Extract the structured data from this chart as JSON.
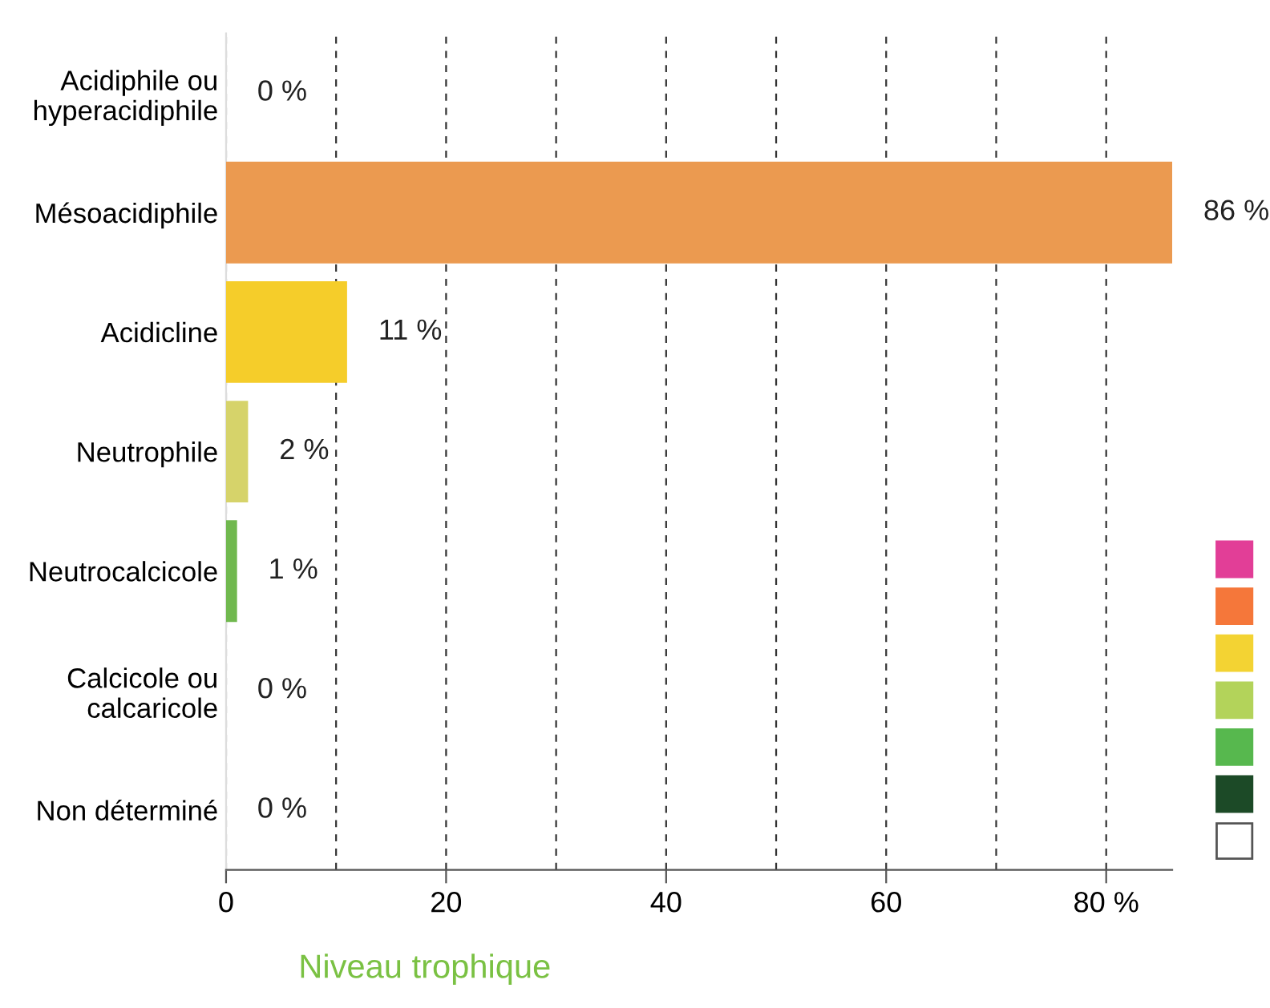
{
  "chart_data": {
    "type": "bar",
    "orientation": "horizontal",
    "xlabel": "Niveau trophique",
    "categories": [
      "Acidiphile ou\nhyperacidiphile",
      "Mésoacidiphile",
      "Acidicline",
      "Neutrophile",
      "Neutrocalcicole",
      "Calcicole ou\ncalcaricole",
      "Non déterminé"
    ],
    "values": [
      0,
      86,
      11,
      2,
      1,
      0,
      0
    ],
    "colors": [
      "#e23e97",
      "#eb9a50",
      "#f5cd2a",
      "#d6d36a",
      "#70b84e",
      "#1c4a27",
      "#ffffff"
    ],
    "value_labels": [
      "0 %",
      "86 %",
      "11 %",
      "2 %",
      "1 %",
      "0 %",
      "0 %"
    ],
    "xlim": [
      0,
      86
    ],
    "xticks": [
      0,
      {
        "value": 10,
        "label": null
      },
      20,
      {
        "value": 30,
        "label": null
      },
      40,
      {
        "value": 50,
        "label": null
      },
      60,
      {
        "value": 70,
        "label": null
      },
      {
        "value": 80,
        "label": "80 %"
      }
    ],
    "grid": "x"
  }
}
